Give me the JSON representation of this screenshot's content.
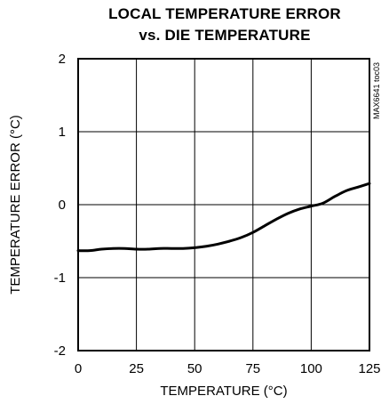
{
  "chart_data": {
    "type": "line",
    "title_lines": [
      "LOCAL TEMPERATURE ERROR",
      "vs. DIE TEMPERATURE"
    ],
    "xlabel": "TEMPERATURE (°C)",
    "ylabel": "TEMPERATURE ERROR (°C)",
    "xlim": [
      0,
      125
    ],
    "ylim": [
      -2,
      2
    ],
    "xticks": [
      0,
      25,
      50,
      75,
      100,
      125
    ],
    "yticks": [
      -2,
      -1,
      0,
      1,
      2
    ],
    "grid": true,
    "annotation": "MAX6641 toc03",
    "series": [
      {
        "x": [
          0,
          5,
          10,
          15,
          20,
          25,
          30,
          35,
          40,
          45,
          50,
          55,
          60,
          65,
          70,
          75,
          80,
          85,
          90,
          95,
          100,
          105,
          110,
          115,
          120,
          125
        ],
        "y": [
          -0.63,
          -0.63,
          -0.61,
          -0.6,
          -0.6,
          -0.61,
          -0.61,
          -0.6,
          -0.6,
          -0.6,
          -0.59,
          -0.57,
          -0.54,
          -0.5,
          -0.45,
          -0.38,
          -0.29,
          -0.2,
          -0.12,
          -0.06,
          -0.02,
          0.02,
          0.11,
          0.19,
          0.24,
          0.29
        ]
      }
    ],
    "colors": {
      "line": "#000000",
      "grid": "#000000",
      "frame": "#000000"
    }
  }
}
